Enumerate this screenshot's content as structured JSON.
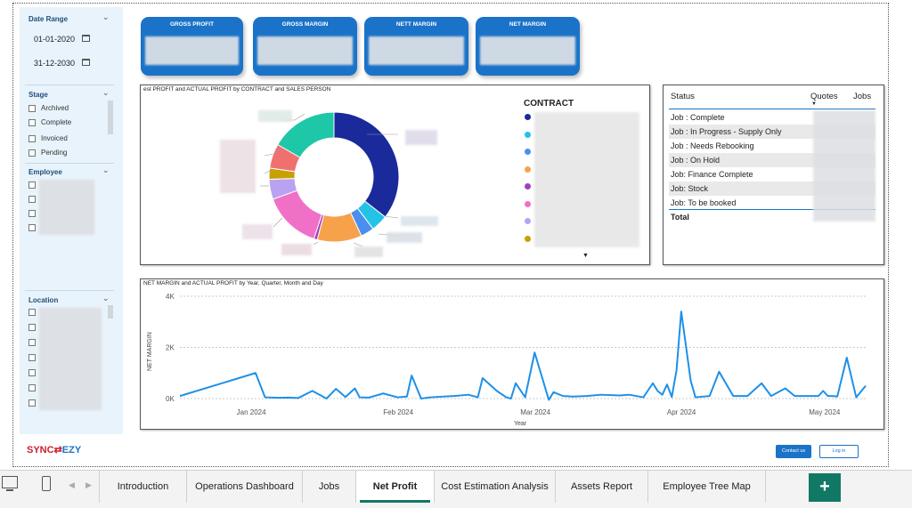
{
  "filters": {
    "date_range": {
      "title": "Date Range",
      "start": "01-01-2020",
      "end": "31-12-2030"
    },
    "stage": {
      "title": "Stage",
      "options": [
        "Archived",
        "Complete",
        "Invoiced",
        "Pending"
      ]
    },
    "employee": {
      "title": "Employee"
    },
    "location": {
      "title": "Location"
    }
  },
  "kpis": [
    {
      "title": "GROSS PROFIT"
    },
    {
      "title": "GROSS MARGIN"
    },
    {
      "title": "NETT MARGIN"
    },
    {
      "title": "NET MARGIN"
    }
  ],
  "donut": {
    "title": "est PROFIT and ACTUAL PROFIT by CONTRACT and SALES PERSON",
    "legend_title": "CONTRACT",
    "colors": [
      "#1a2a9a",
      "#22c3e6",
      "#4a8ff0",
      "#f7a24b",
      "#a040c0",
      "#f070c8",
      "#b9a3f0",
      "#c8a000"
    ]
  },
  "status_table": {
    "headers": {
      "status": "Status",
      "quotes": "Quotes",
      "jobs": "Jobs"
    },
    "rows": [
      "Job : Complete",
      "Job : In Progress - Supply Only",
      "Job : Needs Rebooking",
      "Job : On Hold",
      "Job: Finance Complete",
      "Job: Stock",
      "Job: To be booked"
    ],
    "total_label": "Total"
  },
  "line_chart_title": "NET MARGIN and ACTUAL PROFIT by Year, Quarter, Month and Day",
  "chart_data": {
    "type": "line",
    "title": "NET MARGIN and ACTUAL PROFIT by Year, Quarter, Month and Day",
    "xlabel": "Year",
    "ylabel": "NET MARGIN",
    "x_ticks": [
      "Jan 2024",
      "Feb 2024",
      "Mar 2024",
      "Apr 2024",
      "May 2024"
    ],
    "y_ticks": [
      "0K",
      "2K",
      "4K"
    ],
    "ylim": [
      0,
      4000
    ],
    "grid": true,
    "series": [
      {
        "color": "#1e90e8",
        "x": [
          "2023-12-17",
          "2024-01-02",
          "2024-01-04",
          "2024-01-07",
          "2024-01-09",
          "2024-01-11",
          "2024-01-14",
          "2024-01-17",
          "2024-01-19",
          "2024-01-21",
          "2024-01-23",
          "2024-01-24",
          "2024-01-26",
          "2024-01-29",
          "2024-02-01",
          "2024-02-03",
          "2024-02-04",
          "2024-02-06",
          "2024-02-08",
          "2024-02-13",
          "2024-02-16",
          "2024-02-18",
          "2024-02-19",
          "2024-02-22",
          "2024-02-24",
          "2024-02-25",
          "2024-02-26",
          "2024-02-28",
          "2024-03-01",
          "2024-03-04",
          "2024-03-05",
          "2024-03-07",
          "2024-03-09",
          "2024-03-12",
          "2024-03-15",
          "2024-03-19",
          "2024-03-21",
          "2024-03-24",
          "2024-03-26",
          "2024-03-27",
          "2024-03-28",
          "2024-03-29",
          "2024-03-30",
          "2024-03-31",
          "2024-04-01",
          "2024-04-03",
          "2024-04-04",
          "2024-04-07",
          "2024-04-09",
          "2024-04-12",
          "2024-04-14",
          "2024-04-15",
          "2024-04-18",
          "2024-04-20",
          "2024-04-23",
          "2024-04-25",
          "2024-04-28",
          "2024-04-30",
          "2024-05-01",
          "2024-05-02",
          "2024-05-03",
          "2024-05-04",
          "2024-05-06",
          "2024-05-08",
          "2024-05-10"
        ],
        "y": [
          100,
          1000,
          50,
          30,
          40,
          20,
          300,
          0,
          380,
          60,
          400,
          50,
          40,
          200,
          50,
          80,
          900,
          0,
          50,
          100,
          150,
          50,
          800,
          300,
          50,
          0,
          600,
          50,
          1800,
          -50,
          250,
          100,
          80,
          100,
          150,
          120,
          150,
          50,
          600,
          300,
          150,
          550,
          60,
          1100,
          3400,
          700,
          50,
          100,
          1050,
          100,
          100,
          100,
          600,
          100,
          400,
          100,
          100,
          100,
          300,
          100,
          100,
          80,
          1600,
          50,
          500
        ]
      }
    ]
  },
  "branding": {
    "logo_left": "SYNC",
    "logo_right": "EZY"
  },
  "buttons": {
    "contact": "Contact us",
    "login": "Log in"
  },
  "tabs": [
    "Introduction",
    "Operations Dashboard",
    "Jobs",
    "Net Profit",
    "Cost Estimation Analysis",
    "Assets Report",
    "Employee Tree Map"
  ],
  "active_tab": "Net Profit"
}
